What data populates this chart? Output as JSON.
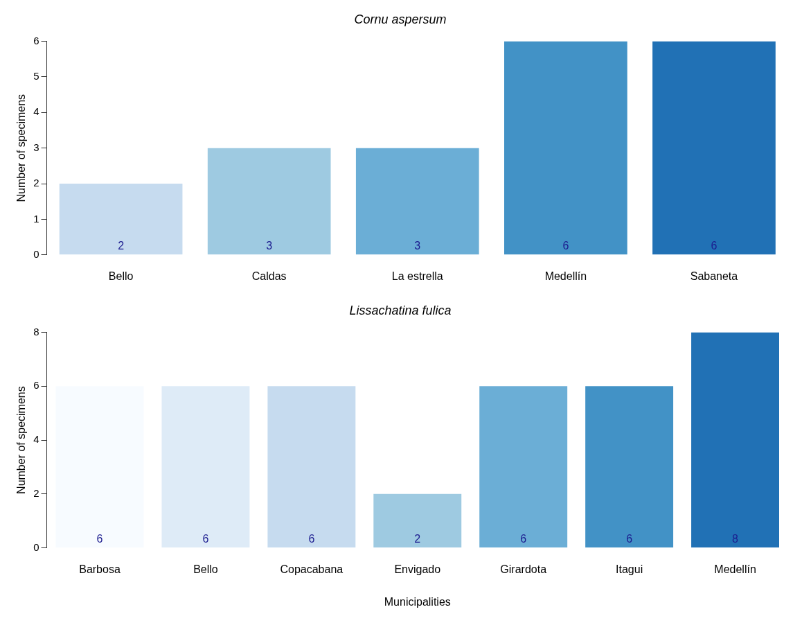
{
  "chart_data": [
    {
      "type": "bar",
      "title": "Cornu aspersum",
      "ylabel": "Number of specimens",
      "categories": [
        "Bello",
        "Caldas",
        "La estrella",
        "Medellín",
        "Sabaneta"
      ],
      "values": [
        2,
        3,
        3,
        6,
        6
      ],
      "colors": [
        "#c6dbef",
        "#9ecae1",
        "#6baed6",
        "#4292c6",
        "#2171b5"
      ],
      "ylim": [
        0,
        6
      ],
      "yticks": [
        0,
        1,
        2,
        3,
        4,
        5,
        6
      ],
      "data_labels": true,
      "grid": false,
      "legend": false
    },
    {
      "type": "bar",
      "title": "Lissachatina fulica",
      "xlabel": "Municipalities",
      "ylabel": "Number of specimens",
      "categories": [
        "Barbosa",
        "Bello",
        "Copacabana",
        "Envigado",
        "Girardota",
        "Itagui",
        "Medellín"
      ],
      "values": [
        6,
        6,
        6,
        2,
        6,
        6,
        8
      ],
      "colors": [
        "#f7fbff",
        "#deebf7",
        "#c6dbef",
        "#9ecae1",
        "#6baed6",
        "#4292c6",
        "#2171b5"
      ],
      "ylim": [
        0,
        8
      ],
      "yticks": [
        0,
        2,
        4,
        6,
        8
      ],
      "data_labels": true,
      "grid": false,
      "legend": false
    }
  ]
}
